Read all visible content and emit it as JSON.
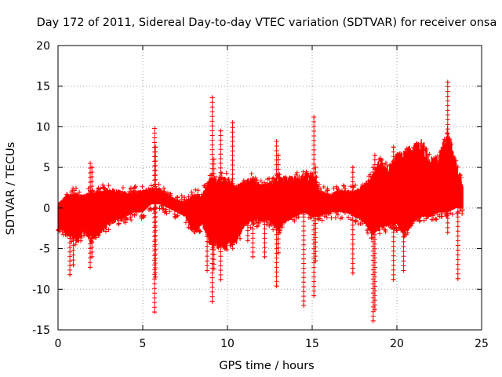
{
  "chart_data": {
    "type": "scatter",
    "title": "Day 172 of 2011, Sidereal Day-to-day VTEC variation (SDTVAR) for receiver onsa",
    "xlabel": "GPS time / hours",
    "ylabel": "SDTVAR / TECUs",
    "xlim": [
      0,
      25
    ],
    "ylim": [
      -15,
      20
    ],
    "x_ticks": [
      0,
      5,
      10,
      15,
      20,
      25
    ],
    "y_ticks": [
      -15,
      -10,
      -5,
      0,
      5,
      10,
      15,
      20
    ],
    "x_tick_labels": [
      "0",
      "5",
      "10",
      "15",
      "20",
      "25"
    ],
    "y_tick_labels": [
      "-15",
      "-10",
      "-5",
      "0",
      "5",
      "10",
      "15",
      "20"
    ],
    "grid": true,
    "marker": "+",
    "color": "#ff0000",
    "series": [
      {
        "name": "SDTVAR",
        "envelope_hours": [
          0.0,
          0.5,
          1.0,
          1.5,
          2.0,
          2.5,
          3.0,
          3.5,
          4.0,
          4.5,
          5.0,
          5.5,
          6.0,
          6.5,
          7.0,
          7.5,
          8.0,
          8.5,
          9.0,
          9.5,
          10.0,
          10.5,
          11.0,
          11.5,
          12.0,
          12.5,
          13.0,
          13.5,
          14.0,
          14.5,
          15.0,
          15.5,
          16.0,
          16.5,
          17.0,
          17.5,
          18.0,
          18.5,
          19.0,
          19.5,
          20.0,
          20.5,
          21.0,
          21.5,
          22.0,
          22.5,
          23.0,
          23.5,
          23.9
        ],
        "envelope_upper": [
          0.5,
          1.5,
          1.7,
          1.5,
          1.8,
          2.0,
          2.2,
          2.0,
          1.8,
          1.9,
          2.0,
          2.3,
          2.2,
          1.5,
          1.0,
          0.7,
          1.5,
          1.5,
          3.5,
          3.5,
          3.5,
          2.5,
          3.0,
          3.5,
          2.5,
          3.0,
          3.5,
          3.5,
          3.5,
          3.8,
          4.0,
          2.0,
          1.5,
          2.0,
          2.0,
          2.0,
          2.5,
          3.5,
          5.5,
          4.5,
          6.0,
          6.5,
          7.0,
          7.5,
          5.5,
          6.0,
          9.0,
          5.0,
          2.5
        ],
        "envelope_lower": [
          -2.5,
          -3.0,
          -4.0,
          -3.0,
          -3.5,
          -3.0,
          -2.0,
          -1.5,
          -1.0,
          -0.5,
          -0.5,
          0.5,
          0.5,
          0.0,
          -0.5,
          -1.0,
          -3.0,
          -2.0,
          -4.0,
          -4.5,
          -4.5,
          -4.0,
          -2.0,
          -1.5,
          -1.5,
          -1.5,
          -2.5,
          -1.5,
          -1.0,
          -0.5,
          -1.0,
          -1.0,
          -0.5,
          -0.5,
          -0.5,
          -1.0,
          -1.5,
          -3.0,
          -2.5,
          -2.0,
          -2.0,
          -3.0,
          -1.5,
          -1.0,
          -1.0,
          -0.5,
          -0.5,
          0.0,
          0.0
        ],
        "spikes_hours": [
          0.7,
          0.9,
          1.9,
          2.0,
          5.7,
          5.75,
          9.1,
          9.2,
          8.8,
          9.6,
          10.3,
          11.2,
          11.5,
          12.2,
          12.9,
          13.0,
          14.5,
          15.1,
          15.2,
          17.4,
          18.6,
          18.7,
          19.8,
          20.4,
          23.0,
          23.6
        ],
        "spikes_top": [
          -1.5,
          -1.0,
          5.5,
          5.0,
          9.8,
          7.5,
          13.6,
          6.0,
          3.0,
          9.5,
          10.5,
          1.5,
          2.0,
          2.0,
          8.2,
          6.5,
          3.5,
          11.2,
          5.0,
          5.0,
          5.0,
          6.5,
          7.5,
          3.5,
          15.5,
          3.0
        ],
        "spikes_bottom": [
          -8.2,
          -7.0,
          -7.3,
          -6.0,
          -12.8,
          -8.5,
          -11.5,
          -7.5,
          -7.7,
          -8.8,
          -4.5,
          -4.0,
          -6.0,
          -6.0,
          -9.6,
          -5.5,
          -12.0,
          -10.8,
          -6.5,
          -8.0,
          -13.9,
          -12.5,
          -8.8,
          -7.7,
          -3.0,
          -8.7
        ]
      }
    ]
  }
}
